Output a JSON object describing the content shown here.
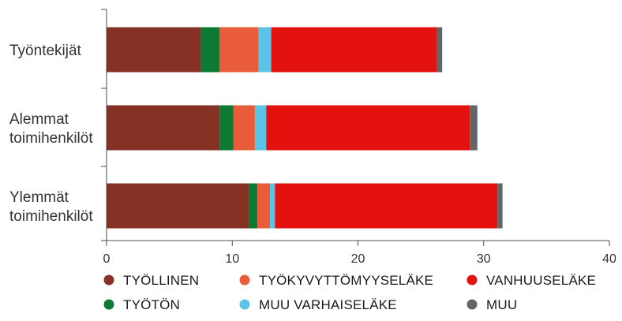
{
  "chart_data": {
    "type": "bar",
    "orientation": "horizontal",
    "stacked": true,
    "title": "",
    "xlabel": "",
    "ylabel": "",
    "xlim": [
      0,
      40
    ],
    "xticks": [
      0,
      10,
      20,
      30,
      40
    ],
    "grid": false,
    "legend_position": "bottom",
    "categories": [
      [
        "Työntekijät"
      ],
      [
        "Alemmat",
        "toimihenkilöt"
      ],
      [
        "Ylemmät",
        "toimihenkilöt"
      ]
    ],
    "series": [
      {
        "name": "TYÖLLINEN",
        "color": "#853124",
        "values": [
          7.5,
          9.0,
          11.3
        ]
      },
      {
        "name": "TYÖTÖN",
        "color": "#0c7a33",
        "values": [
          1.5,
          1.1,
          0.7
        ]
      },
      {
        "name": "TYÖKYVYTTÖMYYSELÄKE",
        "color": "#e85c3a",
        "values": [
          3.1,
          1.7,
          1.0
        ]
      },
      {
        "name": "MUU VARHAISELÄKE",
        "color": "#5bc4e6",
        "values": [
          1.0,
          0.9,
          0.4
        ]
      },
      {
        "name": "VANHUUSELÄKE",
        "color": "#e3120f",
        "values": [
          13.2,
          16.2,
          17.7
        ]
      },
      {
        "name": "MUU",
        "color": "#636466",
        "values": [
          0.4,
          0.6,
          0.4
        ]
      }
    ],
    "legend_order": [
      "TYÖLLINEN",
      "TYÖKYVYTTÖMYYSELÄKE",
      "VANHUUSELÄKE",
      "TYÖTÖN",
      "MUU VARHAISELÄKE",
      "MUU"
    ]
  }
}
